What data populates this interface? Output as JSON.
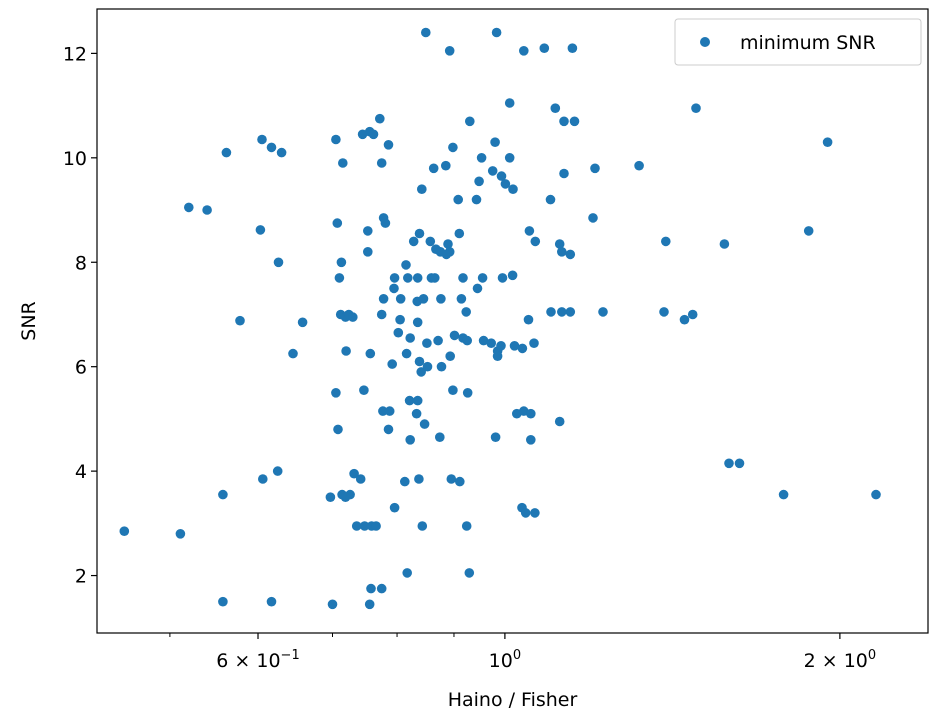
{
  "chart_data": {
    "type": "scatter",
    "xlabel": "Haino / Fisher",
    "ylabel": "SNR",
    "xscale": "log",
    "xlim": [
      0.43,
      2.4
    ],
    "ylim": [
      0.9,
      12.85
    ],
    "x_ticks": [
      {
        "value": 0.6,
        "label": "6 × 10",
        "exp": "−1"
      },
      {
        "value": 1.0,
        "label": "10",
        "exp": "0"
      },
      {
        "value": 2.0,
        "label": "2 × 10",
        "exp": "0"
      }
    ],
    "y_ticks": [
      {
        "value": 2,
        "label": "2"
      },
      {
        "value": 4,
        "label": "4"
      },
      {
        "value": 6,
        "label": "6"
      },
      {
        "value": 8,
        "label": "8"
      },
      {
        "value": 10,
        "label": "10"
      },
      {
        "value": 12,
        "label": "12"
      }
    ],
    "minor_x_ticks": [
      0.5,
      0.7,
      0.8,
      0.9
    ],
    "legend": {
      "position": "upper right"
    },
    "series": [
      {
        "name": "minimum SNR",
        "color": "#1f77b4",
        "marker": "circle",
        "points": [
          [
            0.849,
            12.4
          ],
          [
            0.983,
            12.4
          ],
          [
            0.892,
            12.05
          ],
          [
            1.04,
            12.05
          ],
          [
            1.085,
            12.1
          ],
          [
            1.15,
            12.1
          ],
          [
            1.01,
            11.05
          ],
          [
            1.11,
            10.95
          ],
          [
            1.13,
            10.7
          ],
          [
            1.155,
            10.7
          ],
          [
            1.485,
            10.95
          ],
          [
            0.772,
            10.75
          ],
          [
            0.756,
            10.5
          ],
          [
            0.745,
            10.45
          ],
          [
            0.762,
            10.45
          ],
          [
            0.705,
            10.35
          ],
          [
            0.605,
            10.35
          ],
          [
            0.617,
            10.2
          ],
          [
            0.63,
            10.1
          ],
          [
            0.562,
            10.1
          ],
          [
            0.715,
            9.9
          ],
          [
            0.775,
            9.9
          ],
          [
            0.786,
            10.25
          ],
          [
            0.898,
            10.2
          ],
          [
            0.93,
            10.7
          ],
          [
            0.98,
            10.3
          ],
          [
            0.953,
            10.0
          ],
          [
            1.01,
            10.0
          ],
          [
            0.863,
            9.8
          ],
          [
            0.885,
            9.85
          ],
          [
            0.975,
            9.75
          ],
          [
            0.993,
            9.65
          ],
          [
            0.948,
            9.55
          ],
          [
            1.001,
            9.5
          ],
          [
            1.017,
            9.4
          ],
          [
            1.13,
            9.7
          ],
          [
            1.205,
            9.8
          ],
          [
            1.32,
            9.85
          ],
          [
            1.95,
            10.3
          ],
          [
            0.842,
            9.4
          ],
          [
            0.908,
            9.2
          ],
          [
            0.943,
            9.2
          ],
          [
            1.099,
            9.2
          ],
          [
            1.2,
            8.85
          ],
          [
            0.52,
            9.05
          ],
          [
            0.54,
            9.0
          ],
          [
            0.603,
            8.62
          ],
          [
            0.626,
            8.0
          ],
          [
            0.707,
            8.75
          ],
          [
            0.778,
            8.85
          ],
          [
            0.781,
            8.75
          ],
          [
            0.753,
            8.6
          ],
          [
            0.838,
            8.55
          ],
          [
            0.828,
            8.4
          ],
          [
            0.857,
            8.4
          ],
          [
            0.889,
            8.35
          ],
          [
            0.892,
            8.2
          ],
          [
            0.867,
            8.25
          ],
          [
            0.875,
            8.2
          ],
          [
            0.886,
            8.15
          ],
          [
            0.91,
            8.55
          ],
          [
            0.753,
            8.2
          ],
          [
            0.713,
            8.0
          ],
          [
            0.815,
            7.95
          ],
          [
            0.71,
            7.7
          ],
          [
            0.796,
            7.7
          ],
          [
            0.818,
            7.7
          ],
          [
            0.835,
            7.7
          ],
          [
            0.859,
            7.7
          ],
          [
            0.865,
            7.7
          ],
          [
            0.917,
            7.7
          ],
          [
            0.945,
            7.5
          ],
          [
            0.955,
            7.7
          ],
          [
            0.995,
            7.7
          ],
          [
            0.795,
            7.5
          ],
          [
            0.778,
            7.3
          ],
          [
            0.806,
            7.3
          ],
          [
            0.834,
            7.25
          ],
          [
            0.845,
            7.3
          ],
          [
            0.876,
            7.3
          ],
          [
            0.914,
            7.3
          ],
          [
            1.016,
            7.75
          ],
          [
            1.052,
            8.6
          ],
          [
            1.065,
            8.4
          ],
          [
            1.12,
            8.35
          ],
          [
            1.125,
            8.2
          ],
          [
            1.145,
            8.15
          ],
          [
            1.395,
            8.4
          ],
          [
            1.575,
            8.35
          ],
          [
            1.875,
            8.6
          ],
          [
            0.578,
            6.88
          ],
          [
            0.658,
            6.85
          ],
          [
            0.712,
            7.0
          ],
          [
            0.719,
            6.95
          ],
          [
            0.724,
            7.0
          ],
          [
            0.73,
            6.95
          ],
          [
            0.775,
            7.0
          ],
          [
            0.805,
            6.9
          ],
          [
            0.835,
            6.85
          ],
          [
            0.923,
            7.05
          ],
          [
            1.05,
            6.9
          ],
          [
            1.1,
            7.05
          ],
          [
            1.145,
            7.05
          ],
          [
            1.225,
            7.05
          ],
          [
            1.39,
            7.05
          ],
          [
            1.45,
            6.9
          ],
          [
            1.475,
            7.0
          ],
          [
            0.645,
            6.25
          ],
          [
            0.72,
            6.3
          ],
          [
            0.757,
            6.25
          ],
          [
            0.802,
            6.65
          ],
          [
            0.822,
            6.55
          ],
          [
            0.851,
            6.45
          ],
          [
            0.871,
            6.5
          ],
          [
            0.893,
            6.2
          ],
          [
            0.901,
            6.6
          ],
          [
            0.917,
            6.55
          ],
          [
            0.925,
            6.5
          ],
          [
            0.957,
            6.5
          ],
          [
            0.972,
            6.45
          ],
          [
            0.985,
            6.3
          ],
          [
            0.992,
            6.4
          ],
          [
            1.02,
            6.4
          ],
          [
            1.037,
            6.35
          ],
          [
            1.062,
            6.45
          ],
          [
            1.125,
            7.05
          ],
          [
            0.792,
            6.05
          ],
          [
            0.816,
            6.25
          ],
          [
            0.838,
            6.1
          ],
          [
            0.841,
            5.9
          ],
          [
            0.852,
            6.0
          ],
          [
            0.877,
            6.0
          ],
          [
            0.898,
            5.55
          ],
          [
            0.926,
            5.5
          ],
          [
            0.821,
            5.35
          ],
          [
            0.835,
            5.35
          ],
          [
            0.985,
            6.2
          ],
          [
            0.705,
            5.5
          ],
          [
            0.747,
            5.55
          ],
          [
            0.777,
            5.15
          ],
          [
            0.788,
            5.15
          ],
          [
            0.833,
            5.1
          ],
          [
            0.847,
            4.9
          ],
          [
            0.786,
            4.8
          ],
          [
            0.822,
            4.6
          ],
          [
            0.874,
            4.65
          ],
          [
            1.025,
            5.1
          ],
          [
            1.04,
            5.15
          ],
          [
            1.055,
            5.1
          ],
          [
            1.12,
            4.95
          ],
          [
            0.981,
            4.65
          ],
          [
            1.055,
            4.6
          ],
          [
            0.708,
            4.8
          ],
          [
            0.625,
            4.0
          ],
          [
            0.606,
            3.85
          ],
          [
            0.732,
            3.95
          ],
          [
            0.742,
            3.85
          ],
          [
            0.726,
            3.55
          ],
          [
            0.813,
            3.8
          ],
          [
            0.837,
            3.85
          ],
          [
            0.895,
            3.85
          ],
          [
            0.911,
            3.8
          ],
          [
            0.558,
            3.55
          ],
          [
            0.697,
            3.5
          ],
          [
            0.719,
            3.5
          ],
          [
            0.714,
            3.55
          ],
          [
            0.796,
            3.3
          ],
          [
            1.036,
            3.3
          ],
          [
            1.044,
            3.2
          ],
          [
            1.064,
            3.2
          ],
          [
            1.59,
            4.15
          ],
          [
            1.625,
            4.15
          ],
          [
            1.78,
            3.55
          ],
          [
            2.155,
            3.55
          ],
          [
            0.736,
            2.95
          ],
          [
            0.748,
            2.95
          ],
          [
            0.759,
            2.95
          ],
          [
            0.766,
            2.95
          ],
          [
            0.843,
            2.95
          ],
          [
            0.924,
            2.95
          ],
          [
            0.455,
            2.85
          ],
          [
            0.511,
            2.8
          ],
          [
            0.817,
            2.05
          ],
          [
            0.929,
            2.05
          ],
          [
            0.758,
            1.75
          ],
          [
            0.775,
            1.75
          ],
          [
            0.558,
            1.5
          ],
          [
            0.617,
            1.5
          ],
          [
            0.7,
            1.45
          ],
          [
            0.756,
            1.45
          ]
        ]
      }
    ]
  }
}
